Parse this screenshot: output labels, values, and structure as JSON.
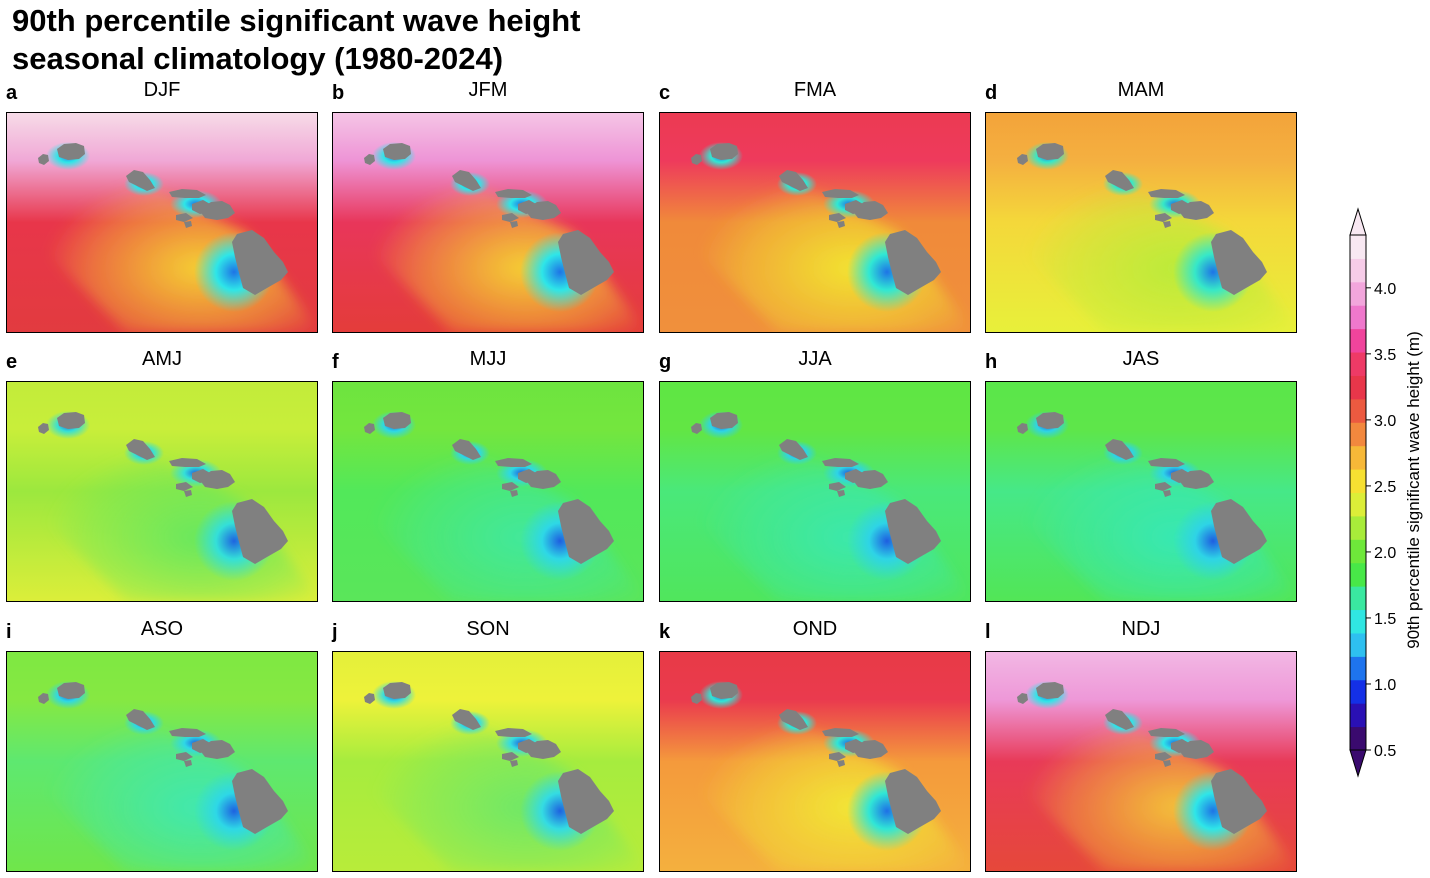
{
  "title_line1": "90th percentile significant wave height",
  "title_line2": "seasonal climatology (1980-2024)",
  "panels": [
    {
      "letter": "a",
      "season": "DJF",
      "field": {
        "north": "#f7dce8",
        "ne": "#f0a8d6",
        "mid": "#e8364a",
        "south": "#e23b3f",
        "lee": "#f6d832",
        "shadow": "#2ee6e8",
        "core": "#1e74e6"
      }
    },
    {
      "letter": "b",
      "season": "JFM",
      "field": {
        "north": "#f5c6e6",
        "ne": "#ee94d6",
        "mid": "#e8365a",
        "south": "#e43c3a",
        "lee": "#f6d832",
        "shadow": "#2ee6e8",
        "core": "#1e74e6"
      }
    },
    {
      "letter": "c",
      "season": "FMA",
      "field": {
        "north": "#ec3a52",
        "ne": "#ee3a5c",
        "mid": "#f08a3a",
        "south": "#f0903c",
        "lee": "#f2e830",
        "shadow": "#30e8d4",
        "core": "#1e74e6"
      }
    },
    {
      "letter": "d",
      "season": "MAM",
      "field": {
        "north": "#f3a33a",
        "ne": "#f4b040",
        "mid": "#f4d83a",
        "south": "#e8f03a",
        "lee": "#b8ec3a",
        "shadow": "#36e8c8",
        "core": "#1e74e6"
      }
    },
    {
      "letter": "e",
      "season": "AMJ",
      "field": {
        "north": "#c2ec3a",
        "ne": "#c8ee3a",
        "mid": "#9ce83e",
        "south": "#dcee3a",
        "lee": "#64e860",
        "shadow": "#34e0d8",
        "core": "#1e64e0"
      }
    },
    {
      "letter": "f",
      "season": "MJJ",
      "field": {
        "north": "#6de43f",
        "ne": "#74e63e",
        "mid": "#52e85a",
        "south": "#5ae65a",
        "lee": "#40e8a0",
        "shadow": "#2ed8e6",
        "core": "#1e5ee0"
      }
    },
    {
      "letter": "g",
      "season": "JJA",
      "field": {
        "north": "#5ee644",
        "ne": "#62e644",
        "mid": "#4ae87a",
        "south": "#50e65c",
        "lee": "#3ae8b0",
        "shadow": "#2ed4e6",
        "core": "#1e5ee0"
      }
    },
    {
      "letter": "h",
      "season": "JAS",
      "field": {
        "north": "#5ae64a",
        "ne": "#5ee64a",
        "mid": "#46e888",
        "south": "#52e656",
        "lee": "#36e8b8",
        "shadow": "#2ed4e6",
        "core": "#1e5ee0"
      }
    },
    {
      "letter": "i",
      "season": "ASO",
      "field": {
        "north": "#7ee842",
        "ne": "#86e842",
        "mid": "#5ee870",
        "south": "#70e64a",
        "lee": "#3ee8b4",
        "shadow": "#2ed8e6",
        "core": "#1e62e0"
      }
    },
    {
      "letter": "j",
      "season": "SON",
      "field": {
        "north": "#e4f03a",
        "ne": "#eef23a",
        "mid": "#a6ec3e",
        "south": "#b8ec3a",
        "lee": "#6ce86a",
        "shadow": "#34dce2",
        "core": "#1e62e0"
      }
    },
    {
      "letter": "k",
      "season": "OND",
      "field": {
        "north": "#e83a46",
        "ne": "#ea3a4e",
        "mid": "#f49a3c",
        "south": "#f4b03e",
        "lee": "#f2ea34",
        "shadow": "#30e6d6",
        "core": "#1e70e6"
      }
    },
    {
      "letter": "l",
      "season": "NDJ",
      "field": {
        "north": "#f2b8e4",
        "ne": "#ee98d8",
        "mid": "#e83a58",
        "south": "#e6483a",
        "lee": "#f4c838",
        "shadow": "#2ee6e8",
        "core": "#1e74e6"
      }
    }
  ],
  "land_color": "#808080",
  "colorbar": {
    "label": "90th percentile significant wave height (m)",
    "range": [
      0.5,
      4.4
    ],
    "ticks": [
      "0.5",
      "1.0",
      "1.5",
      "2.0",
      "2.5",
      "3.0",
      "3.5",
      "4.0"
    ],
    "tick_values": [
      0.5,
      1.0,
      1.5,
      2.0,
      2.5,
      3.0,
      3.5,
      4.0
    ],
    "colors": [
      "#3a0a6e",
      "#2a10b4",
      "#1430e6",
      "#1e74ee",
      "#2ec0f0",
      "#30e6e2",
      "#3ae8a0",
      "#48e848",
      "#6ee83a",
      "#a8ec3a",
      "#dcee38",
      "#f6e032",
      "#f6b838",
      "#f2883e",
      "#ec5a40",
      "#e8364a",
      "#ee3a66",
      "#f0449c",
      "#ef78cc",
      "#f2a6dc",
      "#f6cce8",
      "#f8e8f2"
    ]
  }
}
